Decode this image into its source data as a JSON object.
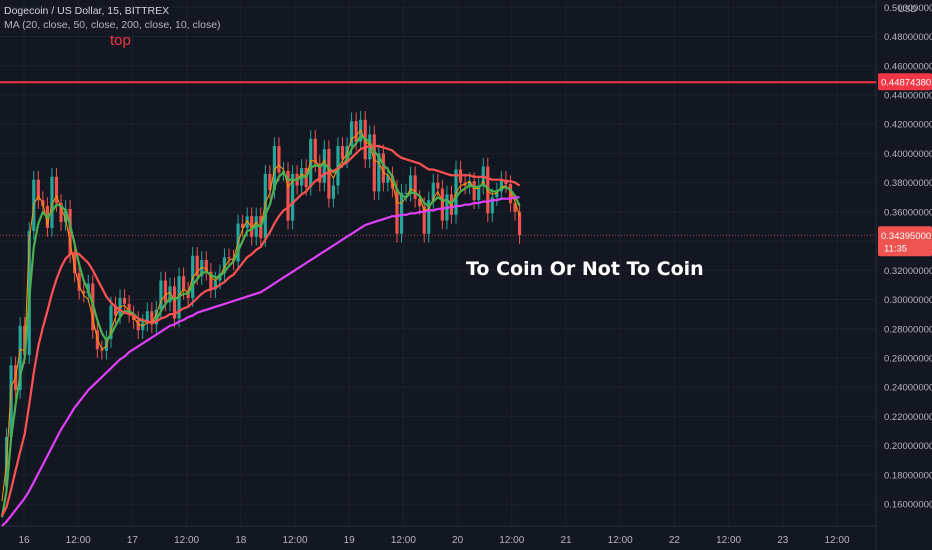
{
  "legend": {
    "symbol_line": "Dogecoin / US Dollar, 15, BITTREX",
    "ma_line": "MA (20, close, 50, close, 200, close, 10, close)"
  },
  "labels": {
    "top_note": "top",
    "annotation": "To Coin Or Not To Coin",
    "currency": "USD",
    "resistance_price": "0.44874380",
    "last_price": "0.34395000",
    "countdown": "11:35"
  },
  "colors": {
    "background": "#131722",
    "up_candle": "#26a69a",
    "down_candle": "#ef5350",
    "ma_short": "#ff9800",
    "ma_mid": "#4caf50",
    "ma_long": "#ff5252",
    "ma_200": "#e040fb",
    "resistance": "#f23645"
  },
  "chart_data": {
    "type": "line",
    "ylim": [
      0.145,
      0.505
    ],
    "yticks": [
      "0.50000000",
      "0.48000000",
      "0.46000000",
      "0.44000000",
      "0.42000000",
      "0.40000000",
      "0.38000000",
      "0.36000000",
      "0.34000000",
      "0.32000000",
      "0.30000000",
      "0.28000000",
      "0.26000000",
      "0.24000000",
      "0.22000000",
      "0.20000000",
      "0.18000000",
      "0.16000000"
    ],
    "xticks": [
      "16",
      "12:00",
      "17",
      "12:00",
      "18",
      "12:00",
      "19",
      "12:00",
      "20",
      "12:00",
      "21",
      "12:00",
      "22",
      "12:00",
      "23",
      "12:00"
    ],
    "x_index": [
      0,
      2,
      4,
      6,
      8,
      10,
      12,
      14,
      16,
      18,
      20,
      22,
      24,
      26,
      28,
      30,
      32,
      34,
      36,
      38,
      40,
      42,
      44,
      46,
      48,
      50,
      52,
      54,
      56,
      58,
      60,
      62,
      64,
      66,
      68,
      70,
      72,
      74,
      76,
      78,
      80,
      82,
      84,
      86,
      88,
      90,
      92,
      94,
      96,
      98,
      100,
      102,
      104,
      106,
      108,
      110,
      112,
      114,
      116,
      118,
      120,
      122,
      124,
      126,
      128,
      130,
      132,
      134,
      136,
      138,
      140,
      142,
      144,
      146,
      148,
      150,
      152,
      154,
      156,
      158,
      160,
      162,
      164,
      166,
      168,
      170,
      172,
      174,
      176,
      178,
      180,
      182,
      184,
      186,
      188,
      190,
      192,
      194,
      196,
      198,
      200,
      202,
      204,
      206,
      208,
      210,
      212,
      214,
      216,
      218,
      220,
      222,
      224,
      226,
      228
    ],
    "close": [
      0.172,
      0.206,
      0.255,
      0.238,
      0.282,
      0.262,
      0.347,
      0.382,
      0.368,
      0.364,
      0.349,
      0.384,
      0.366,
      0.353,
      0.362,
      0.331,
      0.318,
      0.306,
      0.304,
      0.311,
      0.279,
      0.266,
      0.265,
      0.273,
      0.296,
      0.289,
      0.301,
      0.297,
      0.29,
      0.286,
      0.279,
      0.284,
      0.292,
      0.283,
      0.293,
      0.313,
      0.298,
      0.309,
      0.287,
      0.316,
      0.306,
      0.301,
      0.33,
      0.316,
      0.327,
      0.319,
      0.307,
      0.313,
      0.318,
      0.329,
      0.328,
      0.326,
      0.352,
      0.349,
      0.357,
      0.343,
      0.357,
      0.342,
      0.386,
      0.375,
      0.405,
      0.387,
      0.388,
      0.354,
      0.386,
      0.378,
      0.39,
      0.377,
      0.41,
      0.393,
      0.38,
      0.403,
      0.369,
      0.378,
      0.405,
      0.396,
      0.405,
      0.422,
      0.408,
      0.423,
      0.396,
      0.413,
      0.374,
      0.4,
      0.38,
      0.385,
      0.376,
      0.345,
      0.373,
      0.373,
      0.385,
      0.369,
      0.364,
      0.345,
      0.368,
      0.38,
      0.376,
      0.354,
      0.372,
      0.358,
      0.389,
      0.38,
      0.378,
      0.381,
      0.368,
      0.378,
      0.391,
      0.359,
      0.37,
      0.374,
      0.382,
      0.379,
      0.366,
      0.36,
      0.344
    ],
    "series": [
      {
        "values": [
          0.162,
          0.188,
          0.24,
          0.247,
          0.266,
          0.265,
          0.34,
          0.365,
          0.371,
          0.366,
          0.351,
          0.365,
          0.371,
          0.363,
          0.355,
          0.339,
          0.322,
          0.309,
          0.303,
          0.3,
          0.287,
          0.273,
          0.266,
          0.268,
          0.279,
          0.288,
          0.295,
          0.296,
          0.292,
          0.288,
          0.283,
          0.282,
          0.284,
          0.284,
          0.29,
          0.299,
          0.303,
          0.305,
          0.299,
          0.303,
          0.307,
          0.305,
          0.315,
          0.319,
          0.322,
          0.321,
          0.315,
          0.313,
          0.316,
          0.322,
          0.327,
          0.328,
          0.339,
          0.348,
          0.354,
          0.349,
          0.353,
          0.349,
          0.366,
          0.373,
          0.389,
          0.392,
          0.389,
          0.377,
          0.381,
          0.382,
          0.386,
          0.384,
          0.395,
          0.395,
          0.391,
          0.395,
          0.388,
          0.383,
          0.39,
          0.395,
          0.4,
          0.41,
          0.412,
          0.416,
          0.408,
          0.406,
          0.395,
          0.394,
          0.387,
          0.385,
          0.38,
          0.366,
          0.366,
          0.37,
          0.376,
          0.374,
          0.37,
          0.361,
          0.362,
          0.369,
          0.374,
          0.367,
          0.368,
          0.364,
          0.373,
          0.378,
          0.379,
          0.381,
          0.376,
          0.376,
          0.381,
          0.374,
          0.372,
          0.373,
          0.377,
          0.378,
          0.374,
          0.367,
          0.357
        ]
      },
      {
        "values": [
          0.151,
          0.169,
          0.205,
          0.228,
          0.248,
          0.26,
          0.3,
          0.336,
          0.352,
          0.36,
          0.356,
          0.36,
          0.365,
          0.364,
          0.361,
          0.351,
          0.338,
          0.324,
          0.313,
          0.306,
          0.297,
          0.286,
          0.277,
          0.272,
          0.276,
          0.282,
          0.288,
          0.292,
          0.292,
          0.29,
          0.287,
          0.285,
          0.285,
          0.284,
          0.286,
          0.292,
          0.297,
          0.301,
          0.3,
          0.302,
          0.304,
          0.304,
          0.31,
          0.314,
          0.318,
          0.319,
          0.317,
          0.315,
          0.316,
          0.319,
          0.323,
          0.326,
          0.333,
          0.34,
          0.347,
          0.348,
          0.351,
          0.35,
          0.358,
          0.365,
          0.377,
          0.384,
          0.387,
          0.382,
          0.382,
          0.382,
          0.384,
          0.384,
          0.39,
          0.392,
          0.391,
          0.393,
          0.39,
          0.387,
          0.389,
          0.392,
          0.396,
          0.403,
          0.407,
          0.412,
          0.41,
          0.408,
          0.401,
          0.398,
          0.392,
          0.389,
          0.384,
          0.375,
          0.371,
          0.37,
          0.373,
          0.373,
          0.371,
          0.366,
          0.364,
          0.367,
          0.37,
          0.368,
          0.368,
          0.366,
          0.37,
          0.374,
          0.376,
          0.378,
          0.377,
          0.377,
          0.379,
          0.376,
          0.374,
          0.374,
          0.376,
          0.377,
          0.375,
          0.371,
          0.364
        ]
      },
      {
        "values": [
          0.152,
          0.158,
          0.17,
          0.183,
          0.196,
          0.208,
          0.228,
          0.25,
          0.268,
          0.281,
          0.292,
          0.304,
          0.314,
          0.322,
          0.328,
          0.331,
          0.332,
          0.331,
          0.328,
          0.325,
          0.32,
          0.314,
          0.308,
          0.302,
          0.298,
          0.295,
          0.293,
          0.291,
          0.29,
          0.289,
          0.287,
          0.286,
          0.285,
          0.284,
          0.285,
          0.287,
          0.288,
          0.29,
          0.29,
          0.292,
          0.294,
          0.295,
          0.298,
          0.301,
          0.304,
          0.306,
          0.307,
          0.308,
          0.31,
          0.312,
          0.315,
          0.317,
          0.321,
          0.325,
          0.329,
          0.331,
          0.334,
          0.336,
          0.341,
          0.346,
          0.352,
          0.357,
          0.361,
          0.363,
          0.366,
          0.369,
          0.372,
          0.374,
          0.378,
          0.381,
          0.383,
          0.386,
          0.387,
          0.388,
          0.39,
          0.392,
          0.394,
          0.397,
          0.4,
          0.403,
          0.404,
          0.405,
          0.405,
          0.405,
          0.404,
          0.403,
          0.402,
          0.399,
          0.397,
          0.396,
          0.395,
          0.394,
          0.393,
          0.391,
          0.389,
          0.389,
          0.388,
          0.387,
          0.386,
          0.385,
          0.385,
          0.385,
          0.385,
          0.385,
          0.384,
          0.384,
          0.384,
          0.383,
          0.382,
          0.382,
          0.382,
          0.381,
          0.381,
          0.38,
          0.378
        ]
      },
      {
        "values": [
          0.145,
          0.148,
          0.152,
          0.156,
          0.16,
          0.164,
          0.169,
          0.175,
          0.181,
          0.187,
          0.193,
          0.199,
          0.205,
          0.211,
          0.216,
          0.221,
          0.226,
          0.23,
          0.234,
          0.238,
          0.241,
          0.244,
          0.247,
          0.25,
          0.253,
          0.256,
          0.259,
          0.261,
          0.264,
          0.266,
          0.268,
          0.27,
          0.272,
          0.274,
          0.276,
          0.278,
          0.28,
          0.282,
          0.283,
          0.285,
          0.286,
          0.288,
          0.289,
          0.291,
          0.292,
          0.293,
          0.294,
          0.295,
          0.296,
          0.297,
          0.298,
          0.299,
          0.3,
          0.301,
          0.302,
          0.303,
          0.304,
          0.305,
          0.307,
          0.309,
          0.311,
          0.313,
          0.315,
          0.317,
          0.319,
          0.321,
          0.323,
          0.325,
          0.327,
          0.329,
          0.331,
          0.333,
          0.335,
          0.337,
          0.339,
          0.341,
          0.343,
          0.345,
          0.347,
          0.349,
          0.351,
          0.352,
          0.353,
          0.354,
          0.355,
          0.356,
          0.357,
          0.357,
          0.358,
          0.358,
          0.359,
          0.359,
          0.36,
          0.36,
          0.361,
          0.361,
          0.362,
          0.362,
          0.363,
          0.363,
          0.364,
          0.364,
          0.365,
          0.365,
          0.366,
          0.366,
          0.367,
          0.367,
          0.368,
          0.368,
          0.369,
          0.369,
          0.369,
          0.37,
          0.37
        ]
      }
    ],
    "hline": 0.4487438,
    "last_price_line": 0.34395
  }
}
